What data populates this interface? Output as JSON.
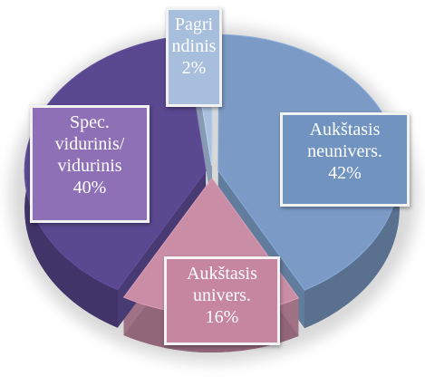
{
  "chart_data": {
    "type": "pie",
    "categories": [
      "Pagrindinis",
      "Aukštasis neunivers.",
      "Aukštasis univers.",
      "Spec. vidurinis/ vidurinis"
    ],
    "values": [
      2,
      42,
      16,
      40
    ],
    "value_labels": [
      "2%",
      "42%",
      "16%",
      "40%"
    ],
    "colors": [
      "#a9c1de",
      "#7b9bc6",
      "#c98ea6",
      "#5a4890"
    ]
  }
}
